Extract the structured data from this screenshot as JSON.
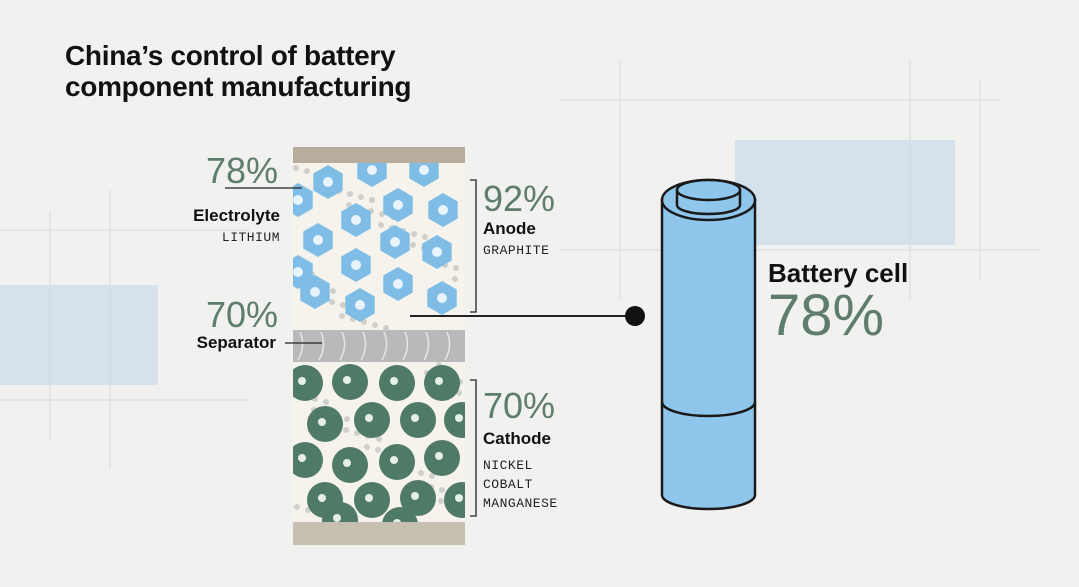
{
  "title": "China’s control of battery component manufacturing",
  "components": [
    {
      "percent": "78%",
      "name": "Electrolyte",
      "materials": [
        "LITHIUM"
      ]
    },
    {
      "percent": "92%",
      "name": "Anode",
      "materials": [
        "GRAPHITE"
      ]
    },
    {
      "percent": "70%",
      "name": "Separator"
    },
    {
      "percent": "70%",
      "name": "Cathode",
      "materials": [
        "NICKEL",
        "COBALT",
        "MANGANESE"
      ]
    }
  ],
  "battery": {
    "name": "Battery cell",
    "percent": "78%"
  }
}
